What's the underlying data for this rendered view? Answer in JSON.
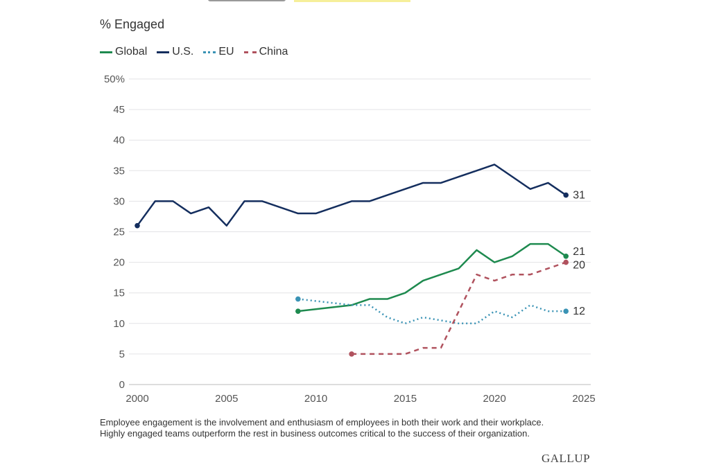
{
  "chart_data": {
    "type": "line",
    "ylabel": "% Engaged",
    "xlim": [
      2000,
      2025
    ],
    "ylim": [
      0,
      50
    ],
    "xticks": [
      "2000",
      "2005",
      "2010",
      "2015",
      "2020",
      "2025"
    ],
    "yticks": [
      "0",
      "5",
      "10",
      "15",
      "20",
      "25",
      "30",
      "35",
      "40",
      "45",
      "50%"
    ],
    "grid": true,
    "legend_position": "top-left",
    "series": [
      {
        "name": "Global",
        "color": "#1e8a4f",
        "style": "solid",
        "end_label": "21",
        "x": [
          2009,
          2012,
          2013,
          2014,
          2015,
          2016,
          2017,
          2018,
          2019,
          2020,
          2021,
          2022,
          2023,
          2024
        ],
        "y": [
          12,
          13,
          14,
          14,
          15,
          17,
          18,
          19,
          22,
          20,
          21,
          23,
          23,
          21
        ]
      },
      {
        "name": "U.S.",
        "color": "#142e5e",
        "style": "solid",
        "end_label": "31",
        "x": [
          2000,
          2001,
          2002,
          2003,
          2004,
          2005,
          2006,
          2007,
          2009,
          2010,
          2012,
          2013,
          2014,
          2016,
          2017,
          2018,
          2019,
          2020,
          2021,
          2022,
          2023,
          2024
        ],
        "y": [
          26,
          30,
          30,
          28,
          29,
          26,
          30,
          30,
          28,
          28,
          30,
          30,
          31,
          33,
          33,
          34,
          35,
          36,
          34,
          32,
          33,
          31
        ]
      },
      {
        "name": "EU",
        "color": "#3a93b5",
        "style": "dotted",
        "end_label": "12",
        "x": [
          2009,
          2012,
          2013,
          2014,
          2015,
          2016,
          2017,
          2018,
          2019,
          2020,
          2021,
          2022,
          2023,
          2024
        ],
        "y": [
          14,
          13,
          13,
          11,
          10,
          11,
          10.5,
          10,
          10,
          12,
          11,
          13,
          12,
          12
        ]
      },
      {
        "name": "China",
        "color": "#b0525e",
        "style": "dashed",
        "end_label": "20",
        "x": [
          2012,
          2013,
          2014,
          2015,
          2016,
          2017,
          2019,
          2020,
          2021,
          2022,
          2023,
          2024
        ],
        "y": [
          5,
          5,
          5,
          5,
          6,
          6,
          18,
          17,
          18,
          18,
          19,
          20
        ]
      }
    ]
  },
  "note": [
    "Employee engagement is the involvement and enthusiasm of employees in both their work and their workplace.",
    "Highly engaged teams outperform the rest in business outcomes critical to the success of their organization."
  ],
  "logo": "GALLUP"
}
